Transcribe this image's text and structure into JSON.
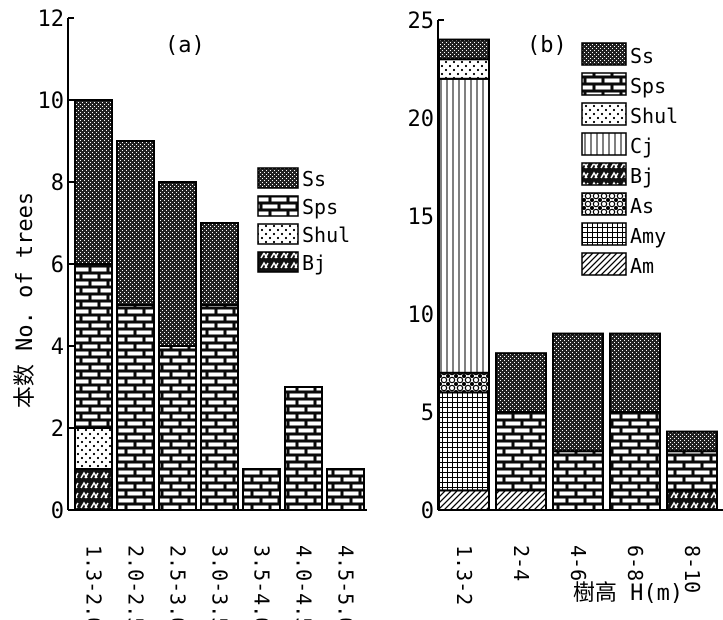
{
  "chart_data": [
    {
      "type": "bar",
      "stacked": true,
      "panel_label": "(a)",
      "ylabel": "本数 No. of trees",
      "xlabel": "",
      "ylim": [
        0,
        12
      ],
      "yticks": [
        0,
        2,
        4,
        6,
        8,
        10,
        12
      ],
      "categories": [
        "1.3-2.0",
        "2.0-2.5",
        "2.5-3.0",
        "3.0-3.5",
        "3.5-4.0",
        "4.0-4.5",
        "4.5-5.0"
      ],
      "legend_position": "right",
      "series": [
        {
          "name": "Bj",
          "values": [
            1,
            0,
            0,
            0,
            0,
            0,
            0
          ]
        },
        {
          "name": "Shul",
          "values": [
            1,
            0,
            0,
            0,
            0,
            0,
            0
          ]
        },
        {
          "name": "Sps",
          "values": [
            4,
            5,
            4,
            5,
            1,
            3,
            1
          ]
        },
        {
          "name": "Ss",
          "values": [
            4,
            4,
            4,
            2,
            0,
            0,
            0
          ]
        }
      ]
    },
    {
      "type": "bar",
      "stacked": true,
      "panel_label": "(b)",
      "ylabel": "",
      "xlabel": "樹高 H(m)",
      "ylim": [
        0,
        25
      ],
      "yticks": [
        0,
        5,
        10,
        15,
        20,
        25
      ],
      "categories": [
        "1.3-2",
        "2-4",
        "4-6",
        "6-8",
        "8-10"
      ],
      "legend_position": "right",
      "series": [
        {
          "name": "Am",
          "values": [
            1,
            1,
            0,
            0,
            0
          ]
        },
        {
          "name": "Amy",
          "values": [
            5,
            0,
            0,
            0,
            0
          ]
        },
        {
          "name": "As",
          "values": [
            1,
            0,
            0,
            0,
            0
          ]
        },
        {
          "name": "Bj",
          "values": [
            0,
            0,
            0,
            0,
            1
          ]
        },
        {
          "name": "Cj",
          "values": [
            15,
            0,
            0,
            0,
            0
          ]
        },
        {
          "name": "Shul",
          "values": [
            1,
            0,
            0,
            0,
            0
          ]
        },
        {
          "name": "Sps",
          "values": [
            0,
            4,
            3,
            5,
            2
          ]
        },
        {
          "name": "Ss",
          "values": [
            1,
            3,
            6,
            4,
            1
          ]
        }
      ]
    }
  ]
}
